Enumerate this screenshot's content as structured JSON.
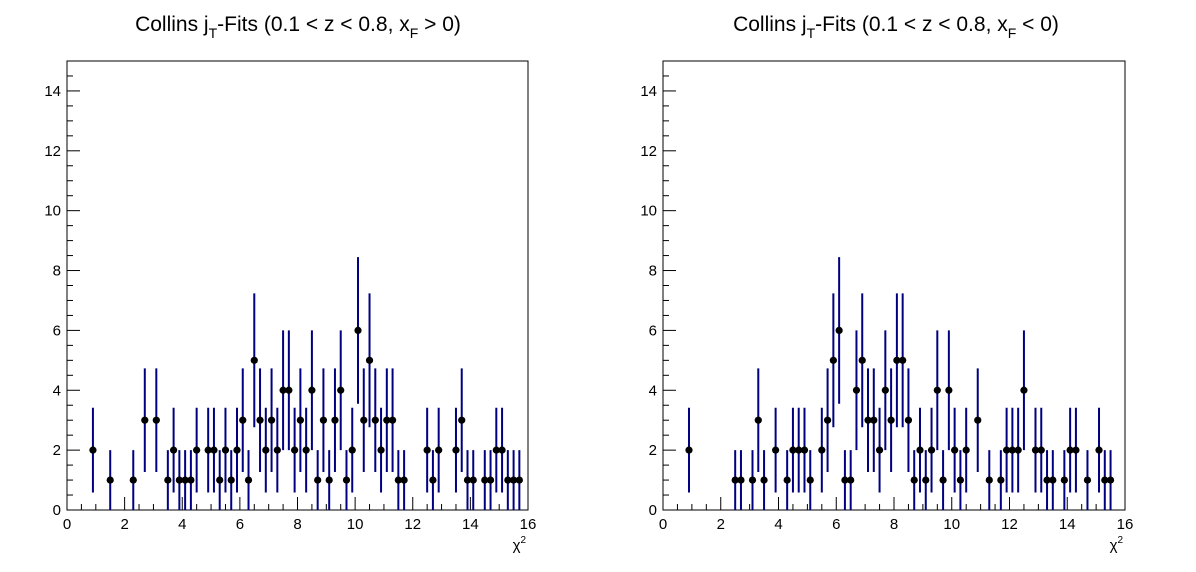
{
  "chart_data": [
    {
      "type": "scatter",
      "title": "Collins j_T-Fits (0.1 < z < 0.8, x_F > 0)",
      "title_parts": [
        "Collins j",
        "T",
        "-Fits (0.1 < z < 0.8, x",
        "F",
        " > 0)"
      ],
      "xlabel": "χ",
      "xlabel_sup": "2",
      "xlim": [
        0,
        16
      ],
      "ylim": [
        0,
        15
      ],
      "xticks": [
        "0",
        "2",
        "4",
        "6",
        "8",
        "10",
        "12",
        "14",
        "16"
      ],
      "yticks": [
        "0",
        "2",
        "4",
        "6",
        "8",
        "10",
        "12",
        "14"
      ],
      "marker_color": "#000000",
      "errorbar_color": "#000080",
      "grid": false,
      "points": [
        {
          "x": 0.9,
          "y": 2
        },
        {
          "x": 1.5,
          "y": 1
        },
        {
          "x": 2.3,
          "y": 1
        },
        {
          "x": 2.7,
          "y": 3
        },
        {
          "x": 3.1,
          "y": 3
        },
        {
          "x": 3.5,
          "y": 1
        },
        {
          "x": 3.7,
          "y": 2
        },
        {
          "x": 3.9,
          "y": 1
        },
        {
          "x": 4.1,
          "y": 1
        },
        {
          "x": 4.3,
          "y": 1
        },
        {
          "x": 4.5,
          "y": 2
        },
        {
          "x": 4.9,
          "y": 2
        },
        {
          "x": 5.1,
          "y": 2
        },
        {
          "x": 5.3,
          "y": 1
        },
        {
          "x": 5.5,
          "y": 2
        },
        {
          "x": 5.7,
          "y": 1
        },
        {
          "x": 5.9,
          "y": 2
        },
        {
          "x": 6.1,
          "y": 3
        },
        {
          "x": 6.3,
          "y": 1
        },
        {
          "x": 6.5,
          "y": 5
        },
        {
          "x": 6.7,
          "y": 3
        },
        {
          "x": 6.9,
          "y": 2
        },
        {
          "x": 7.1,
          "y": 3
        },
        {
          "x": 7.3,
          "y": 2
        },
        {
          "x": 7.5,
          "y": 4
        },
        {
          "x": 7.7,
          "y": 4
        },
        {
          "x": 7.9,
          "y": 2
        },
        {
          "x": 8.1,
          "y": 3
        },
        {
          "x": 8.3,
          "y": 2
        },
        {
          "x": 8.5,
          "y": 4
        },
        {
          "x": 8.7,
          "y": 1
        },
        {
          "x": 8.9,
          "y": 3
        },
        {
          "x": 9.1,
          "y": 1
        },
        {
          "x": 9.3,
          "y": 3
        },
        {
          "x": 9.5,
          "y": 4
        },
        {
          "x": 9.7,
          "y": 1
        },
        {
          "x": 9.9,
          "y": 2
        },
        {
          "x": 10.1,
          "y": 6
        },
        {
          "x": 10.3,
          "y": 3
        },
        {
          "x": 10.5,
          "y": 5
        },
        {
          "x": 10.7,
          "y": 3
        },
        {
          "x": 10.9,
          "y": 2
        },
        {
          "x": 11.1,
          "y": 3
        },
        {
          "x": 11.3,
          "y": 3
        },
        {
          "x": 11.5,
          "y": 1
        },
        {
          "x": 11.7,
          "y": 1
        },
        {
          "x": 12.5,
          "y": 2
        },
        {
          "x": 12.7,
          "y": 1
        },
        {
          "x": 12.9,
          "y": 2
        },
        {
          "x": 13.5,
          "y": 2
        },
        {
          "x": 13.7,
          "y": 3
        },
        {
          "x": 13.9,
          "y": 1
        },
        {
          "x": 14.1,
          "y": 1
        },
        {
          "x": 14.5,
          "y": 1
        },
        {
          "x": 14.7,
          "y": 1
        },
        {
          "x": 14.9,
          "y": 2
        },
        {
          "x": 15.1,
          "y": 2
        },
        {
          "x": 15.3,
          "y": 1
        },
        {
          "x": 15.5,
          "y": 1
        },
        {
          "x": 15.7,
          "y": 1
        }
      ]
    },
    {
      "type": "scatter",
      "title": "Collins j_T-Fits (0.1 < z < 0.8, x_F < 0)",
      "title_parts": [
        "Collins j",
        "T",
        "-Fits (0.1 < z < 0.8, x",
        "F",
        " < 0)"
      ],
      "xlabel": "χ",
      "xlabel_sup": "2",
      "xlim": [
        0,
        16
      ],
      "ylim": [
        0,
        15
      ],
      "xticks": [
        "0",
        "2",
        "4",
        "6",
        "8",
        "10",
        "12",
        "14",
        "16"
      ],
      "yticks": [
        "0",
        "2",
        "4",
        "6",
        "8",
        "10",
        "12",
        "14"
      ],
      "marker_color": "#000000",
      "errorbar_color": "#000080",
      "grid": false,
      "points": [
        {
          "x": 0.9,
          "y": 2
        },
        {
          "x": 2.5,
          "y": 1
        },
        {
          "x": 2.7,
          "y": 1
        },
        {
          "x": 3.1,
          "y": 1
        },
        {
          "x": 3.3,
          "y": 3
        },
        {
          "x": 3.5,
          "y": 1
        },
        {
          "x": 3.9,
          "y": 2
        },
        {
          "x": 4.3,
          "y": 1
        },
        {
          "x": 4.5,
          "y": 2
        },
        {
          "x": 4.7,
          "y": 2
        },
        {
          "x": 4.9,
          "y": 2
        },
        {
          "x": 5.1,
          "y": 1
        },
        {
          "x": 5.5,
          "y": 2
        },
        {
          "x": 5.7,
          "y": 3
        },
        {
          "x": 5.9,
          "y": 5
        },
        {
          "x": 6.1,
          "y": 6
        },
        {
          "x": 6.3,
          "y": 1
        },
        {
          "x": 6.5,
          "y": 1
        },
        {
          "x": 6.7,
          "y": 4
        },
        {
          "x": 6.9,
          "y": 5
        },
        {
          "x": 7.1,
          "y": 3
        },
        {
          "x": 7.3,
          "y": 3
        },
        {
          "x": 7.5,
          "y": 2
        },
        {
          "x": 7.7,
          "y": 4
        },
        {
          "x": 7.9,
          "y": 3
        },
        {
          "x": 8.1,
          "y": 5
        },
        {
          "x": 8.3,
          "y": 5
        },
        {
          "x": 8.5,
          "y": 3
        },
        {
          "x": 8.7,
          "y": 1
        },
        {
          "x": 8.9,
          "y": 2
        },
        {
          "x": 9.1,
          "y": 1
        },
        {
          "x": 9.3,
          "y": 2
        },
        {
          "x": 9.5,
          "y": 4
        },
        {
          "x": 9.7,
          "y": 1
        },
        {
          "x": 9.9,
          "y": 4
        },
        {
          "x": 10.1,
          "y": 2
        },
        {
          "x": 10.3,
          "y": 1
        },
        {
          "x": 10.5,
          "y": 2
        },
        {
          "x": 10.9,
          "y": 3
        },
        {
          "x": 11.3,
          "y": 1
        },
        {
          "x": 11.7,
          "y": 1
        },
        {
          "x": 11.9,
          "y": 2
        },
        {
          "x": 12.1,
          "y": 2
        },
        {
          "x": 12.3,
          "y": 2
        },
        {
          "x": 12.5,
          "y": 4
        },
        {
          "x": 12.9,
          "y": 2
        },
        {
          "x": 13.1,
          "y": 2
        },
        {
          "x": 13.3,
          "y": 1
        },
        {
          "x": 13.5,
          "y": 1
        },
        {
          "x": 13.9,
          "y": 1
        },
        {
          "x": 14.1,
          "y": 2
        },
        {
          "x": 14.3,
          "y": 2
        },
        {
          "x": 14.7,
          "y": 1
        },
        {
          "x": 15.1,
          "y": 2
        },
        {
          "x": 15.3,
          "y": 1
        },
        {
          "x": 15.5,
          "y": 1
        }
      ]
    }
  ]
}
